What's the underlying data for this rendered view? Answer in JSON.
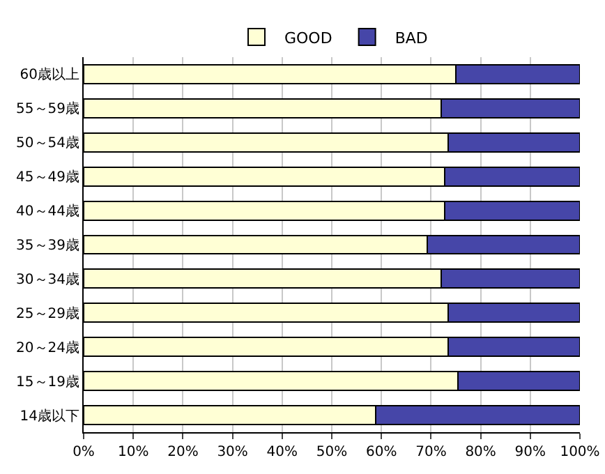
{
  "chart_data": {
    "type": "bar",
    "orientation": "horizontal",
    "stacked": true,
    "categories": [
      "60歳以上",
      "55～59歳",
      "50～54歳",
      "45～49歳",
      "40～44歳",
      "35～39歳",
      "30～34歳",
      "25～29歳",
      "20～24歳",
      "15～19歳",
      "14歳以下"
    ],
    "series": [
      {
        "name": "GOOD",
        "color": "#ffffd5",
        "values": [
          75,
          72,
          73.5,
          72.7,
          72.7,
          69.3,
          72,
          73.5,
          73.5,
          75.4,
          58.9
        ]
      },
      {
        "name": "BAD",
        "color": "#4646a8",
        "values": [
          25,
          28,
          26.5,
          27.3,
          27.3,
          30.7,
          28,
          26.5,
          26.5,
          24.6,
          41.1
        ]
      }
    ],
    "xlim": [
      0,
      100
    ],
    "xticks": [
      {
        "value": 0,
        "label": "0%"
      },
      {
        "value": 10,
        "label": "10%"
      },
      {
        "value": 20,
        "label": "20%"
      },
      {
        "value": 30,
        "label": "30%"
      },
      {
        "value": 40,
        "label": "40%"
      },
      {
        "value": 50,
        "label": "50%"
      },
      {
        "value": 60,
        "label": "60%"
      },
      {
        "value": 70,
        "label": "70%"
      },
      {
        "value": 80,
        "label": "80%"
      },
      {
        "value": 90,
        "label": "90%"
      },
      {
        "value": 100,
        "label": "100%"
      }
    ],
    "grid": "x",
    "legend": "top"
  }
}
